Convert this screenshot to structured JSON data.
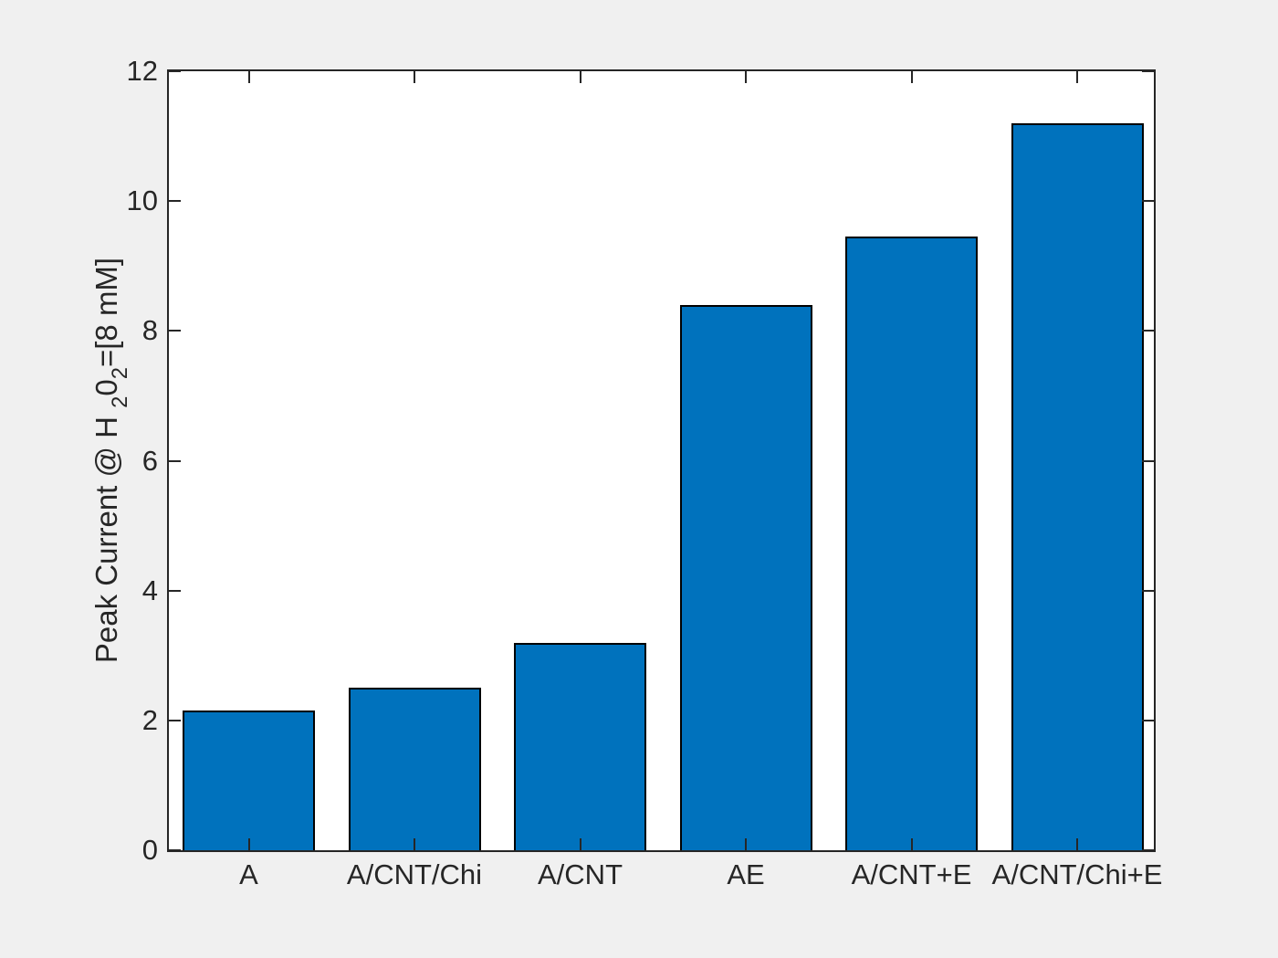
{
  "chart_data": {
    "type": "bar",
    "categories": [
      "A",
      "A/CNT/Chi",
      "A/CNT",
      "AE",
      "A/CNT+E",
      "A/CNT/Chi+E"
    ],
    "values": [
      2.15,
      2.5,
      3.2,
      8.4,
      9.45,
      11.2
    ],
    "title": "",
    "xlabel": "",
    "ylabel": "Peak Current @ H ₂0₂=[8 mM]",
    "ylabel_parts": [
      {
        "text": "Peak Current @ H ",
        "sub": false
      },
      {
        "text": "2",
        "sub": true
      },
      {
        "text": "0",
        "sub": false
      },
      {
        "text": "2",
        "sub": true
      },
      {
        "text": "=[8 mM]",
        "sub": false
      }
    ],
    "ylim": [
      0,
      12
    ],
    "yticks": [
      0,
      2,
      4,
      6,
      8,
      10,
      12
    ],
    "grid": false,
    "legend": null,
    "bar_color": "#0072BD",
    "bar_edge_color": "#000000",
    "axis_color": "#262626",
    "figure_bg": "#F0F0F0",
    "plot_bg": "#FFFFFF"
  }
}
